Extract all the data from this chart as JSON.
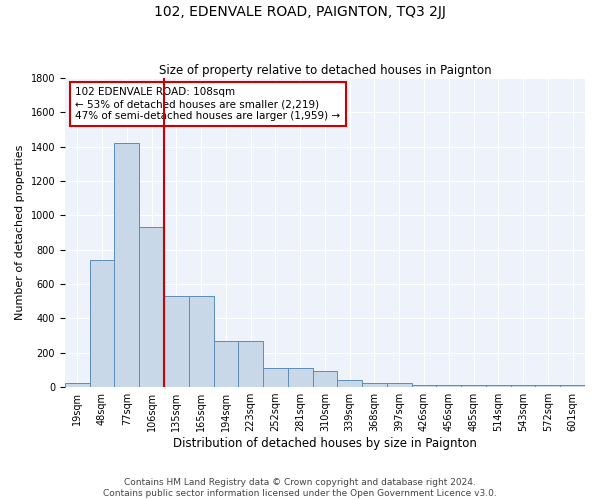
{
  "title": "102, EDENVALE ROAD, PAIGNTON, TQ3 2JJ",
  "subtitle": "Size of property relative to detached houses in Paignton",
  "xlabel": "Distribution of detached houses by size in Paignton",
  "ylabel": "Number of detached properties",
  "bar_labels": [
    "19sqm",
    "48sqm",
    "77sqm",
    "106sqm",
    "135sqm",
    "165sqm",
    "194sqm",
    "223sqm",
    "252sqm",
    "281sqm",
    "310sqm",
    "339sqm",
    "368sqm",
    "397sqm",
    "426sqm",
    "456sqm",
    "485sqm",
    "514sqm",
    "543sqm",
    "572sqm",
    "601sqm"
  ],
  "bar_values": [
    25,
    740,
    1420,
    935,
    530,
    530,
    270,
    270,
    110,
    110,
    95,
    40,
    25,
    25,
    15,
    15,
    15,
    15,
    15,
    15,
    15
  ],
  "bar_color": "#c8d8e8",
  "bar_edge_color": "#5b8db8",
  "vline_x": 3.5,
  "vline_color": "#cc0000",
  "ylim": [
    0,
    1800
  ],
  "yticks": [
    0,
    200,
    400,
    600,
    800,
    1000,
    1200,
    1400,
    1600,
    1800
  ],
  "annotation_text": "102 EDENVALE ROAD: 108sqm\n← 53% of detached houses are smaller (2,219)\n47% of semi-detached houses are larger (1,959) →",
  "annotation_box_color": "#ffffff",
  "annotation_box_edge": "#cc0000",
  "footer_line1": "Contains HM Land Registry data © Crown copyright and database right 2024.",
  "footer_line2": "Contains public sector information licensed under the Open Government Licence v3.0.",
  "background_color": "#eef2fa",
  "grid_color": "#ffffff",
  "title_fontsize": 10,
  "subtitle_fontsize": 8.5,
  "ylabel_fontsize": 8,
  "xlabel_fontsize": 8.5,
  "tick_fontsize": 7,
  "footer_fontsize": 6.5,
  "annot_fontsize": 7.5
}
